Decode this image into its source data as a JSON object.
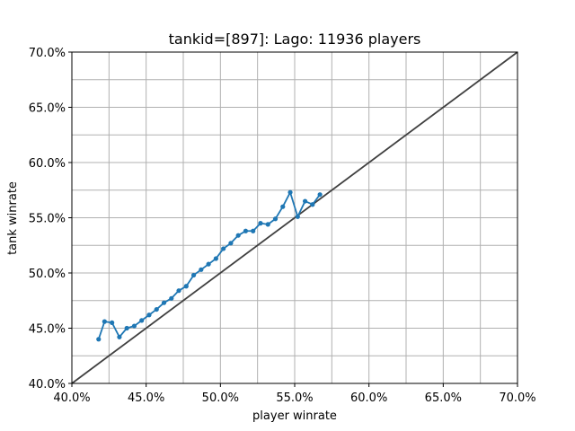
{
  "chart_data": {
    "type": "line",
    "title": "tankid=[897]: Lago: 11936 players",
    "xlabel": "player winrate",
    "ylabel": "tank winrate",
    "xlim": [
      0.4,
      0.7
    ],
    "ylim": [
      0.4,
      0.7
    ],
    "grid": true,
    "x_ticks": [
      0.4,
      0.45,
      0.5,
      0.55,
      0.6,
      0.65,
      0.7
    ],
    "x_tick_labels": [
      "40.0%",
      "45.0%",
      "50.0%",
      "55.0%",
      "60.0%",
      "65.0%",
      "70.0%"
    ],
    "y_ticks": [
      0.4,
      0.45,
      0.5,
      0.55,
      0.6,
      0.65,
      0.7
    ],
    "y_tick_labels": [
      "40.0%",
      "45.0%",
      "50.0%",
      "55.0%",
      "60.0%",
      "65.0%",
      "70.0%"
    ],
    "minor_grid_step": 0.025,
    "colors": {
      "series": "#1f77b4",
      "reference": "#404040",
      "grid": "#b0b0b0"
    },
    "reference_line": {
      "x": [
        0.4,
        0.7
      ],
      "y": [
        0.4,
        0.7
      ]
    },
    "series": [
      {
        "x": [
          0.418,
          0.422,
          0.427,
          0.432,
          0.437,
          0.442,
          0.447,
          0.452,
          0.457,
          0.462,
          0.467,
          0.472,
          0.477,
          0.482,
          0.487,
          0.492,
          0.497,
          0.502,
          0.507,
          0.512,
          0.517,
          0.522,
          0.527,
          0.532,
          0.537,
          0.542,
          0.547,
          0.552,
          0.557,
          0.562,
          0.567
        ],
        "y": [
          0.44,
          0.456,
          0.455,
          0.442,
          0.45,
          0.452,
          0.457,
          0.462,
          0.467,
          0.473,
          0.477,
          0.484,
          0.488,
          0.498,
          0.503,
          0.508,
          0.513,
          0.522,
          0.527,
          0.534,
          0.538,
          0.538,
          0.545,
          0.544,
          0.549,
          0.56,
          0.573,
          0.551,
          0.565,
          0.562,
          0.571
        ]
      }
    ]
  }
}
